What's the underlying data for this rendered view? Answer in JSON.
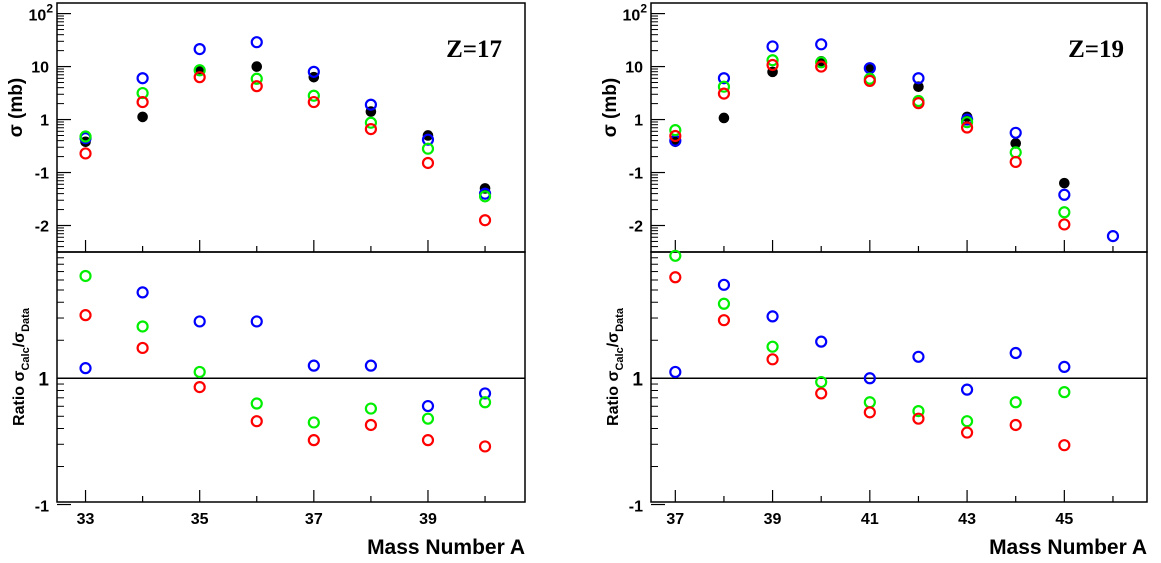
{
  "chart_data": [
    {
      "type": "scatter",
      "panel_label": "Z=17",
      "xlabel": "Mass Number A",
      "x_ticks": [
        "33",
        "35",
        "37",
        "39"
      ],
      "x_range": [
        32.5,
        40.7
      ],
      "top": {
        "ylabel": "σ (mb)",
        "y_ticks": [
          "10²",
          "10",
          "1",
          "-1",
          "-2"
        ],
        "y_scale": "log",
        "y_range": [
          -2.5,
          2.2
        ],
        "series": [
          {
            "name": "",
            "color": "#000000",
            "filled": true,
            "x": [
              33,
              34,
              35,
              36,
              37,
              38,
              39,
              40
            ],
            "y": [
              -0.42,
              0.05,
              0.92,
              1.0,
              0.8,
              0.15,
              -0.3,
              -1.3
            ]
          },
          {
            "name": "",
            "color": "#0000ff",
            "filled": false,
            "x": [
              33,
              34,
              35,
              36,
              37,
              38,
              39,
              40
            ],
            "y": [
              -0.35,
              0.78,
              1.33,
              1.46,
              0.9,
              0.28,
              -0.38,
              -1.4
            ]
          },
          {
            "name": "",
            "color": "#00ee00",
            "filled": false,
            "x": [
              33,
              34,
              35,
              36,
              37,
              38,
              39,
              40
            ],
            "y": [
              -0.32,
              0.5,
              0.93,
              0.77,
              0.45,
              -0.06,
              -0.55,
              -1.45
            ]
          },
          {
            "name": "",
            "color": "#ff0000",
            "filled": false,
            "x": [
              33,
              34,
              35,
              36,
              37,
              38,
              39,
              40
            ],
            "y": [
              -0.64,
              0.33,
              0.8,
              0.63,
              0.33,
              -0.18,
              -0.82,
              -1.9
            ]
          }
        ]
      },
      "bottom": {
        "ylabel": "Ratio σCalc/σData",
        "y_ticks": [
          "1",
          "-1"
        ],
        "y_scale": "log",
        "y_range": [
          -0.98,
          1.0
        ],
        "series": [
          {
            "name": "",
            "color": "#0000ff",
            "filled": false,
            "x": [
              33,
              34,
              35,
              36,
              37,
              38,
              39,
              40
            ],
            "y": [
              0.08,
              0.68,
              0.45,
              0.45,
              0.1,
              0.1,
              -0.22,
              -0.12
            ]
          },
          {
            "name": "",
            "color": "#00ee00",
            "filled": false,
            "x": [
              33,
              34,
              35,
              36,
              37,
              38,
              39,
              40
            ],
            "y": [
              0.81,
              0.41,
              0.05,
              -0.2,
              -0.35,
              -0.24,
              -0.32,
              -0.19
            ]
          },
          {
            "name": "",
            "color": "#ff0000",
            "filled": false,
            "x": [
              33,
              34,
              35,
              36,
              37,
              38,
              39,
              40
            ],
            "y": [
              0.5,
              0.24,
              -0.07,
              -0.34,
              -0.49,
              -0.37,
              -0.49,
              -0.54
            ]
          }
        ]
      }
    },
    {
      "type": "scatter",
      "panel_label": "Z=19",
      "xlabel": "Mass Number A",
      "x_ticks": [
        "37",
        "39",
        "41",
        "43",
        "45"
      ],
      "x_range": [
        36.5,
        46.7
      ],
      "top": {
        "ylabel": "σ (mb)",
        "y_ticks": [
          "10²",
          "10",
          "1",
          "-1",
          "-2"
        ],
        "y_scale": "log",
        "y_range": [
          -2.5,
          2.2
        ],
        "series": [
          {
            "name": "",
            "color": "#000000",
            "filled": true,
            "x": [
              37,
              38,
              39,
              40,
              41,
              42,
              43,
              44,
              45
            ],
            "y": [
              -0.42,
              0.03,
              0.9,
              1.1,
              0.98,
              0.62,
              0.05,
              -0.45,
              -1.2
            ]
          },
          {
            "name": "",
            "color": "#0000ff",
            "filled": false,
            "x": [
              37,
              38,
              39,
              40,
              41,
              42,
              43,
              44,
              45,
              46
            ],
            "y": [
              -0.4,
              0.78,
              1.38,
              1.42,
              0.97,
              0.78,
              0.0,
              -0.25,
              -1.42,
              -2.2
            ]
          },
          {
            "name": "",
            "color": "#00ee00",
            "filled": false,
            "x": [
              37,
              38,
              39,
              40,
              41,
              42,
              43,
              44,
              45
            ],
            "y": [
              -0.2,
              0.62,
              1.12,
              1.08,
              0.77,
              0.35,
              -0.05,
              -0.62,
              -1.75
            ]
          },
          {
            "name": "",
            "color": "#ff0000",
            "filled": false,
            "x": [
              37,
              38,
              39,
              40,
              41,
              42,
              43,
              44,
              45
            ],
            "y": [
              -0.31,
              0.49,
              1.03,
              1.0,
              0.73,
              0.31,
              -0.15,
              -0.8,
              -1.98
            ]
          }
        ]
      },
      "bottom": {
        "ylabel": "Ratio σCalc/σData",
        "y_ticks": [
          "1",
          "-1"
        ],
        "y_scale": "log",
        "y_range": [
          -0.98,
          1.0
        ],
        "series": [
          {
            "name": "",
            "color": "#0000ff",
            "filled": false,
            "x": [
              37,
              38,
              39,
              40,
              41,
              42,
              43,
              44,
              45
            ],
            "y": [
              0.05,
              0.74,
              0.49,
              0.29,
              0.0,
              0.17,
              -0.09,
              0.2,
              0.09
            ]
          },
          {
            "name": "",
            "color": "#00ee00",
            "filled": false,
            "x": [
              37,
              38,
              39,
              40,
              41,
              42,
              43,
              44,
              45
            ],
            "y": [
              0.97,
              0.59,
              0.25,
              -0.03,
              -0.19,
              -0.26,
              -0.34,
              -0.19,
              -0.11
            ]
          },
          {
            "name": "",
            "color": "#ff0000",
            "filled": false,
            "x": [
              37,
              38,
              39,
              40,
              41,
              42,
              43,
              44,
              45
            ],
            "y": [
              0.8,
              0.46,
              0.15,
              -0.12,
              -0.27,
              -0.32,
              -0.43,
              -0.37,
              -0.53
            ]
          }
        ]
      }
    }
  ]
}
